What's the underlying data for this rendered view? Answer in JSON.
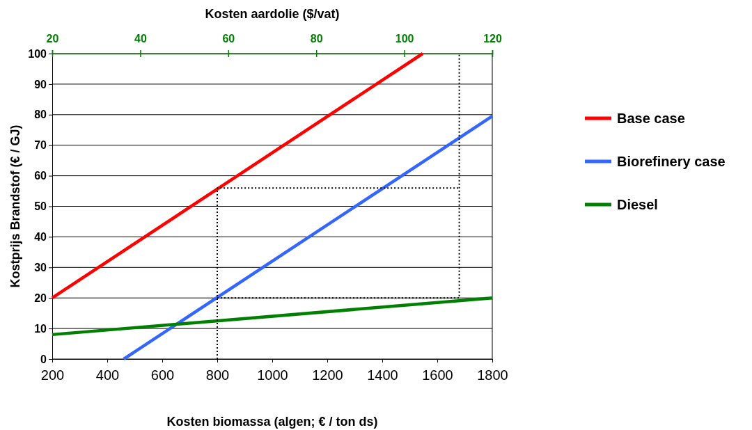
{
  "chart_data": {
    "type": "line",
    "xlabel": "Kosten biomassa (algen; € / ton ds)",
    "ylabel": "Kostprijs Brandstof (€ / GJ)",
    "x2label": "Kosten aardolie ($/vat)",
    "xlim": [
      200,
      1800
    ],
    "xticks": [
      200,
      400,
      600,
      800,
      1000,
      1200,
      1400,
      1600,
      1800
    ],
    "x2lim": [
      20,
      120
    ],
    "x2ticks": [
      20,
      40,
      60,
      80,
      100,
      120
    ],
    "ylim": [
      0,
      100
    ],
    "yticks": [
      0,
      10,
      20,
      30,
      40,
      50,
      60,
      70,
      80,
      90,
      100
    ],
    "grid": "y",
    "legend": "right",
    "line_style": "solid",
    "marker": "none",
    "series": [
      {
        "name": "Base case",
        "color": "#ff0000",
        "x": [
          200,
          1547
        ],
        "values": [
          20,
          100
        ]
      },
      {
        "name": "Biorefinery case",
        "color": "#3366ff",
        "x": [
          460,
          1800
        ],
        "values": [
          0,
          79.5
        ]
      },
      {
        "name": "Diesel",
        "color": "#008000",
        "axis": "x2",
        "x": [
          20,
          120
        ],
        "values": [
          8,
          20
        ]
      },
      {
        "color": "#000000",
        "line_style": "dotted",
        "x": [
          800,
          800,
          1680
        ],
        "values": [
          0,
          56,
          56
        ]
      },
      {
        "color": "#000000",
        "line_style": "dotted",
        "x": [
          800,
          1680,
          1680
        ],
        "values": [
          20,
          20,
          100
        ]
      }
    ]
  }
}
